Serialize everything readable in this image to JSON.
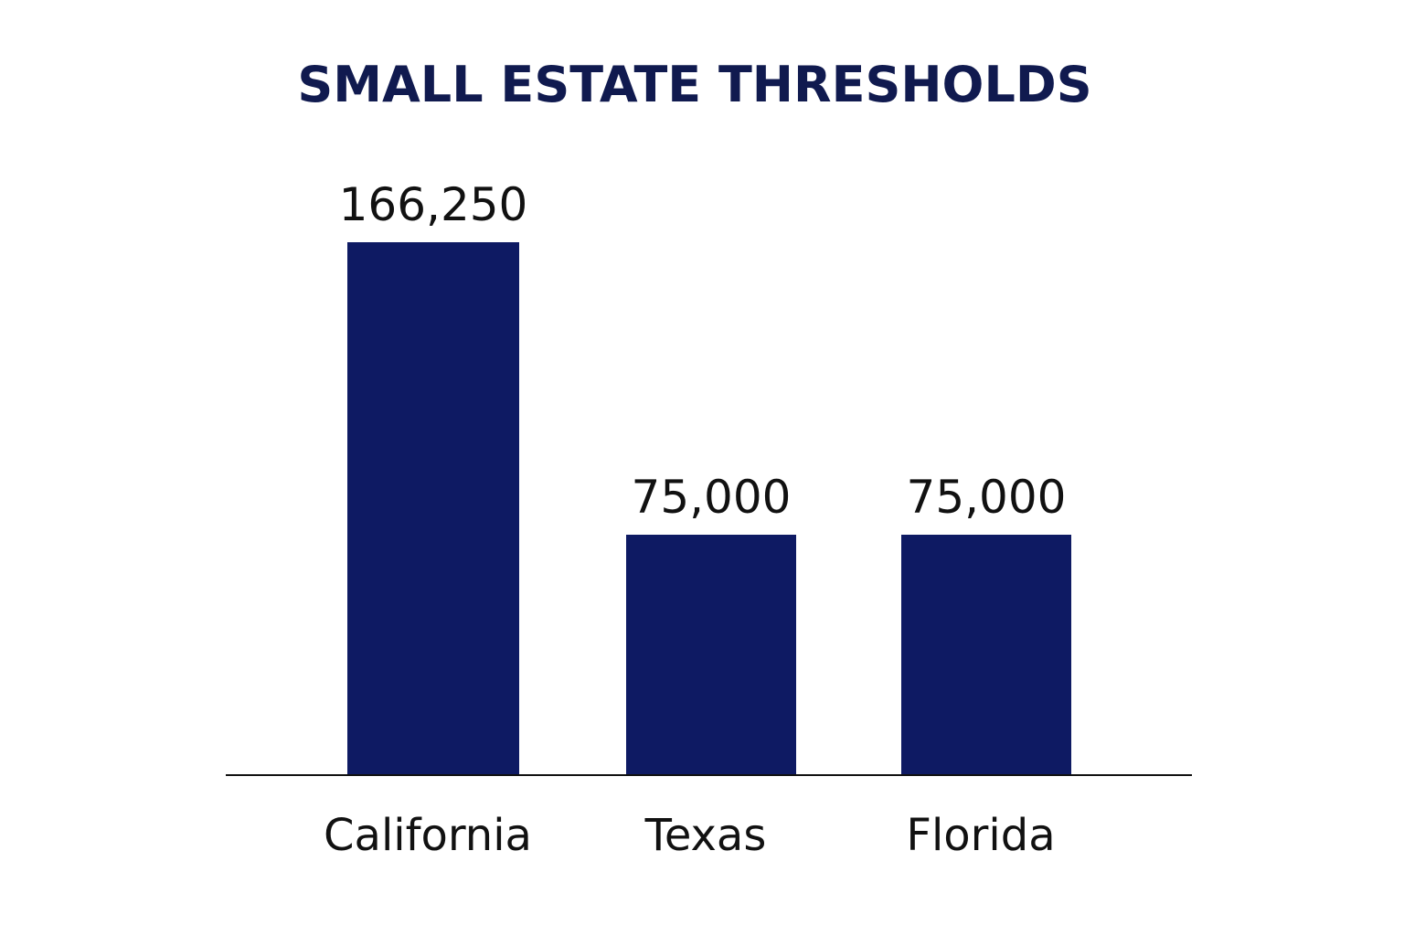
{
  "chart_data": {
    "type": "bar",
    "title": "SMALL ESTATE THRESHOLDS",
    "categories": [
      "California",
      "Texas",
      "Florida"
    ],
    "values": [
      166250,
      75000,
      75000
    ],
    "value_labels": [
      "166,250",
      "75,000",
      "75,000"
    ],
    "xlabel": "",
    "ylabel": "",
    "ylim": [
      0,
      166250
    ],
    "grid": false,
    "legend": "none",
    "colors": {
      "bar": "#0e1a63",
      "title": "#101a4f",
      "text": "#111111",
      "axis": "#111111"
    }
  }
}
